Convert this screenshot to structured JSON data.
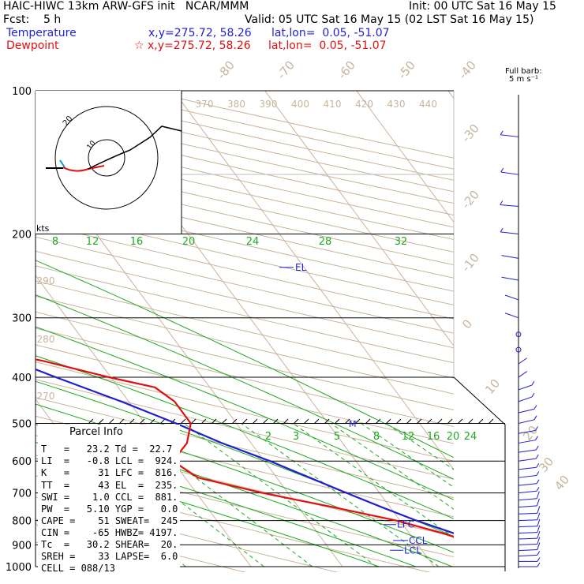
{
  "header": {
    "line1_left": "HAIC-HIWC 13km ARW-GFS init   NCAR/MMM",
    "line1_right": "Init: 00 UTC Sat 16 May 15",
    "line2_left": "Fcst:    5 h",
    "line2_right": "Valid: 05 UTC Sat 16 May 15 (02 LST Sat 16 May 15)",
    "line3_label": "Temperature",
    "line3_xy": "x,y=275.72, 58.26",
    "line3_latlon": "lat,lon=  0.05, -51.07",
    "line4_label": "Dewpoint",
    "line4_xy": "☆ x,y=275.72, 58.26",
    "line4_latlon": "lat,lon=  0.05, -51.07"
  },
  "barb_legend": {
    "line1": "Full barb:",
    "line2": "5 m s⁻¹"
  },
  "hodograph": {
    "label_kts": "kts",
    "ring_outer": "20",
    "ring_inner": "10"
  },
  "parcel_info": {
    "title": "Parcel Info",
    "rows": [
      "T   =   23.2 Td =  22.7",
      "LI  =   -0.8 LCL =  924.",
      "K   =     31 LFC =  816.",
      "TT  =     43 EL  =  235.",
      "SWI =    1.0 CCL =  881.",
      "PW  =   5.10 YGP =   0.0",
      "CAPE =    51 SWEAT=  245",
      "CIN =    -65 HWBZ= 4197.",
      "Tc  =   30.2 SHEAR=  20.",
      "SREH =    33 LAPSE=  6.0",
      "CELL = 088/13"
    ]
  },
  "chart_data": {
    "type": "line",
    "title": "",
    "xlabel": "",
    "ylabel": "",
    "pressure_levels": [
      "100",
      "200",
      "300",
      "400",
      "500",
      "600",
      "700",
      "800",
      "900",
      "1000"
    ],
    "upper_isotherm_labels": [
      "-80",
      "-70",
      "-60",
      "-50",
      "-40"
    ],
    "right_isotherm_labels": [
      "-30",
      "-20",
      "-10",
      "0",
      "10",
      "20",
      "30",
      "40"
    ],
    "theta_labels_top": [
      "370",
      "380",
      "390",
      "400",
      "410",
      "420",
      "430",
      "440"
    ],
    "theta_labels_left": [
      "290",
      "280",
      "270"
    ],
    "mixing_ratio_upper_labels": [
      "8",
      "12",
      "16",
      "20",
      "24",
      "28",
      "32"
    ],
    "mixing_ratio_lower_labels": [
      "2",
      "3",
      "5",
      "8",
      "12",
      "16",
      "20",
      "24"
    ],
    "annotations": {
      "el": "EL",
      "lfc": "LFC",
      "ccl": "CCL",
      "lcl": "LCL",
      "m": "M"
    },
    "series": [
      {
        "name": "Temperature",
        "color": "#1f1fd0",
        "points": [
          [
            1000,
            23.2
          ],
          [
            980,
            22.0
          ],
          [
            950,
            20.5
          ],
          [
            900,
            17.2
          ],
          [
            850,
            14.8
          ],
          [
            800,
            11.8
          ],
          [
            750,
            9.1
          ],
          [
            700,
            6.4
          ],
          [
            650,
            3.6
          ],
          [
            600,
            0.6
          ],
          [
            550,
            -3.2
          ],
          [
            500,
            -6.6
          ],
          [
            450,
            -10.8
          ],
          [
            400,
            -16.0
          ],
          [
            350,
            -21.6
          ],
          [
            300,
            -29.6
          ],
          [
            250,
            -39.6
          ],
          [
            200,
            -51.4
          ],
          [
            150,
            -63.2
          ],
          [
            120,
            -72.0
          ],
          [
            100,
            -77.5
          ]
        ]
      },
      {
        "name": "Dewpoint",
        "color": "#e01010",
        "points": [
          [
            1000,
            22.7
          ],
          [
            980,
            21.6
          ],
          [
            950,
            19.8
          ],
          [
            900,
            16.6
          ],
          [
            850,
            13.6
          ],
          [
            800,
            9.6
          ],
          [
            750,
            3.8
          ],
          [
            700,
            -2.8
          ],
          [
            650,
            -8.6
          ],
          [
            600,
            -10.0
          ],
          [
            550,
            -7.0
          ],
          [
            500,
            -5.0
          ],
          [
            450,
            -5.0
          ],
          [
            420,
            -6.0
          ],
          [
            400,
            -10.2
          ],
          [
            370,
            -16.0
          ],
          [
            350,
            -21.0
          ],
          [
            300,
            -30.6
          ],
          [
            250,
            -42.0
          ],
          [
            220,
            -52.0
          ],
          [
            200,
            -62.0
          ],
          [
            180,
            -69.0
          ],
          [
            160,
            -72.0
          ],
          [
            140,
            -78.0
          ],
          [
            120,
            -83.0
          ],
          [
            100,
            -84.0
          ]
        ]
      }
    ],
    "wind_profile": [
      {
        "p": 1000,
        "u": -4,
        "v": 0
      },
      {
        "p": 975,
        "u": -6,
        "v": 0
      },
      {
        "p": 950,
        "u": -7,
        "v": 1
      },
      {
        "p": 925,
        "u": -8,
        "v": 1
      },
      {
        "p": 900,
        "u": -9,
        "v": 1
      },
      {
        "p": 875,
        "u": -9,
        "v": 1
      },
      {
        "p": 850,
        "u": -10,
        "v": 1
      },
      {
        "p": 825,
        "u": -10,
        "v": 1
      },
      {
        "p": 800,
        "u": -10,
        "v": 1
      },
      {
        "p": 775,
        "u": -9,
        "v": 1
      },
      {
        "p": 750,
        "u": -9,
        "v": 2
      },
      {
        "p": 725,
        "u": -8,
        "v": 2
      },
      {
        "p": 700,
        "u": -7,
        "v": 2
      },
      {
        "p": 650,
        "u": -6,
        "v": 2
      },
      {
        "p": 600,
        "u": -5,
        "v": 2
      },
      {
        "p": 550,
        "u": -4,
        "v": 2
      },
      {
        "p": 500,
        "u": -3,
        "v": 2
      },
      {
        "p": 450,
        "u": -2,
        "v": 2
      },
      {
        "p": 400,
        "u": -1,
        "v": 2
      },
      {
        "p": 350,
        "u": 0,
        "v": 0
      },
      {
        "p": 300,
        "u": 1,
        "v": 1
      },
      {
        "p": 250,
        "u": 2,
        "v": 1
      },
      {
        "p": 200,
        "u": 3,
        "v": 1
      },
      {
        "p": 175,
        "u": 4,
        "v": 1
      },
      {
        "p": 150,
        "u": 5,
        "v": 2
      },
      {
        "p": 125,
        "u": 6,
        "v": 2
      },
      {
        "p": 100,
        "u": 8,
        "v": 2
      }
    ]
  }
}
